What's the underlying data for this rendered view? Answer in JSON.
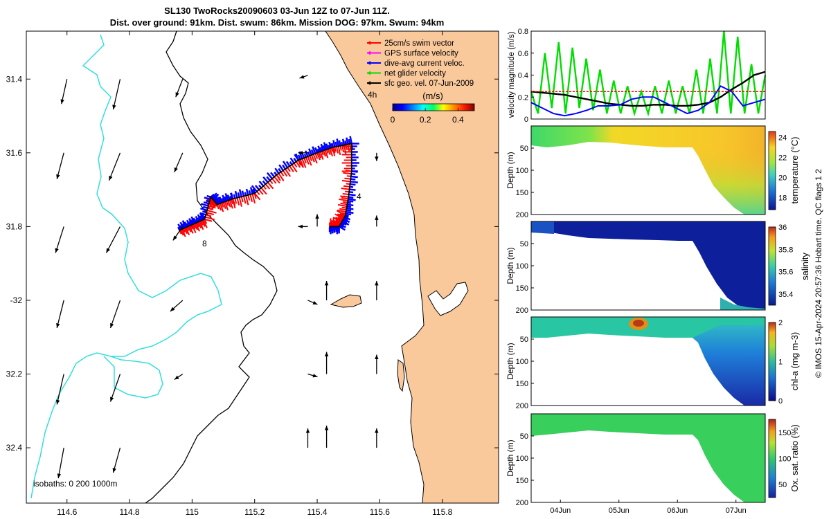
{
  "title": {
    "line1": "SL130 TwoRocks20090603 03-Jun 12Z to 07-Jun 11Z.",
    "line2": "Dist. over ground: 91km. Dist. swum: 86km. Mission DOG: 97km. Swum: 94km"
  },
  "colors": {
    "land": "#f9c89b",
    "swim_vector": "#ff0000",
    "gps_velocity": "#ff00ff",
    "current": "#0000ff",
    "net_velocity": "#00dd00",
    "geo_velocity": "#000000",
    "isobath_0": "#000000",
    "isobath_200": "#000000",
    "isobath_1000": "#33dddd"
  },
  "map": {
    "legend": [
      {
        "label": "25cm/s swim vector",
        "color": "#ff0000"
      },
      {
        "label": "GPS surface velocity",
        "color": "#ff00ff"
      },
      {
        "label": "dive-avg current veloc.",
        "color": "#0000ff"
      },
      {
        "label": "net glider velocity",
        "color": "#00dd00"
      },
      {
        "label": "sfc geo. vel. 07-Jun-2009",
        "color": "#000000"
      }
    ],
    "colorbar_unit": "(m/s)",
    "colorbar_ticks": [
      "0",
      "0.2",
      "0.4"
    ],
    "isobaths_label": "isobaths: 0   200  1000m",
    "time_marks": [
      "4h",
      "4",
      "8"
    ]
  },
  "chart_data": [
    {
      "type": "map",
      "x": [
        114.6,
        114.8,
        115,
        115.2,
        115.4,
        115.6,
        115.8
      ],
      "x_labels": [
        "114.6",
        "114.8",
        "115",
        "115.2",
        "115.4",
        "115.6",
        "115.8"
      ],
      "y": [
        -31.4,
        -31.6,
        -31.8,
        -32,
        -32.2,
        -32.4
      ],
      "y_labels": [
        "31.4",
        "31.6",
        "31.8",
        "-32",
        "32.2",
        "32.4"
      ],
      "xlim": [
        114.47,
        115.98
      ],
      "ylim": [
        -32.55,
        -31.27
      ],
      "track_lon": [
        114.96,
        115.0,
        115.04,
        115.06,
        115.08,
        115.13,
        115.2,
        115.27,
        115.34,
        115.4,
        115.45,
        115.51,
        115.51,
        115.5,
        115.49,
        115.47,
        115.44
      ],
      "track_lat": [
        -31.81,
        -31.795,
        -31.78,
        -31.72,
        -31.74,
        -31.725,
        -31.71,
        -31.66,
        -31.62,
        -31.6,
        -31.585,
        -31.575,
        -31.65,
        -31.72,
        -31.77,
        -31.8,
        -31.8
      ],
      "geo_arrows": [
        {
          "lon": 114.6,
          "lat": -31.4,
          "u": -0.04,
          "v": -0.18
        },
        {
          "lon": 114.77,
          "lat": -31.4,
          "u": -0.05,
          "v": -0.22
        },
        {
          "lon": 114.97,
          "lat": -31.4,
          "u": -0.05,
          "v": -0.13
        },
        {
          "lon": 115.37,
          "lat": -31.39,
          "u": -0.06,
          "v": -0.02
        },
        {
          "lon": 114.59,
          "lat": -31.6,
          "u": -0.05,
          "v": -0.19
        },
        {
          "lon": 114.77,
          "lat": -31.6,
          "u": -0.08,
          "v": -0.2
        },
        {
          "lon": 114.97,
          "lat": -31.6,
          "u": -0.06,
          "v": -0.14
        },
        {
          "lon": 115.37,
          "lat": -31.6,
          "u": -0.07,
          "v": 0.0
        },
        {
          "lon": 115.59,
          "lat": -31.6,
          "u": 0.0,
          "v": -0.06
        },
        {
          "lon": 114.59,
          "lat": -31.8,
          "u": -0.06,
          "v": -0.19
        },
        {
          "lon": 114.77,
          "lat": -31.8,
          "u": -0.1,
          "v": -0.19
        },
        {
          "lon": 114.97,
          "lat": -31.8,
          "u": -0.07,
          "v": -0.1
        },
        {
          "lon": 115.37,
          "lat": -31.8,
          "u": -0.07,
          "v": 0.0
        },
        {
          "lon": 115.4,
          "lat": -31.8,
          "u": 0.0,
          "v": 0.09
        },
        {
          "lon": 115.59,
          "lat": -31.8,
          "u": 0.0,
          "v": 0.08
        },
        {
          "lon": 114.59,
          "lat": -32.0,
          "u": -0.05,
          "v": -0.2
        },
        {
          "lon": 114.77,
          "lat": -32.0,
          "u": -0.07,
          "v": -0.2
        },
        {
          "lon": 114.97,
          "lat": -32.0,
          "u": -0.09,
          "v": -0.08
        },
        {
          "lon": 115.37,
          "lat": -32.0,
          "u": 0.07,
          "v": -0.03
        },
        {
          "lon": 115.43,
          "lat": -32.0,
          "u": 0.0,
          "v": 0.14
        },
        {
          "lon": 115.59,
          "lat": -32.0,
          "u": 0.0,
          "v": 0.14
        },
        {
          "lon": 114.59,
          "lat": -32.2,
          "u": -0.05,
          "v": -0.22
        },
        {
          "lon": 114.77,
          "lat": -32.2,
          "u": -0.07,
          "v": -0.2
        },
        {
          "lon": 114.97,
          "lat": -32.2,
          "u": -0.06,
          "v": -0.04
        },
        {
          "lon": 115.37,
          "lat": -32.2,
          "u": 0.07,
          "v": -0.02
        },
        {
          "lon": 115.43,
          "lat": -32.2,
          "u": 0.0,
          "v": 0.16
        },
        {
          "lon": 115.59,
          "lat": -32.2,
          "u": 0.0,
          "v": 0.14
        },
        {
          "lon": 114.59,
          "lat": -32.4,
          "u": -0.04,
          "v": -0.22
        },
        {
          "lon": 114.77,
          "lat": -32.4,
          "u": -0.05,
          "v": -0.18
        },
        {
          "lon": 115.37,
          "lat": -32.4,
          "u": 0.0,
          "v": 0.14
        },
        {
          "lon": 115.43,
          "lat": -32.4,
          "u": 0.0,
          "v": 0.16
        },
        {
          "lon": 115.59,
          "lat": -32.4,
          "u": 0.0,
          "v": 0.14
        }
      ]
    },
    {
      "type": "line",
      "ylabel": "velocity magnitude (m/s)",
      "xlim": [
        0,
        4
      ],
      "ylim": [
        0,
        0.8
      ],
      "y_ticks": [
        0,
        0.2,
        0.4,
        0.6,
        0.8
      ],
      "series": [
        {
          "color": "#00dd00",
          "values": [
            0.25,
            0.05,
            0.6,
            0.1,
            0.7,
            0.05,
            0.65,
            0.1,
            0.55,
            0.08,
            0.45,
            0.05,
            0.35,
            0.05,
            0.3,
            0.05,
            0.25,
            0.05,
            0.3,
            0.05,
            0.35,
            0.05,
            0.3,
            0.05,
            0.45,
            0.05,
            0.55,
            0.05,
            0.8,
            0.05,
            0.75,
            0.05,
            0.5,
            0.05,
            0.4
          ]
        },
        {
          "color": "#000000",
          "values": [
            0.25,
            0.24,
            0.23,
            0.22,
            0.2,
            0.18,
            0.16,
            0.14,
            0.13,
            0.12,
            0.12,
            0.13,
            0.13,
            0.12,
            0.12,
            0.13,
            0.15,
            0.2,
            0.27,
            0.33,
            0.4,
            0.43
          ]
        },
        {
          "color": "#0000ff",
          "values": [
            0.15,
            0.1,
            0.05,
            0.03,
            0.05,
            0.08,
            0.12,
            0.12,
            0.13,
            0.18,
            0.2,
            0.2,
            0.15,
            0.1,
            0.05,
            0.08,
            0.15,
            0.3,
            0.25,
            0.12,
            0.15,
            0.18
          ]
        },
        {
          "color": "#ff0000",
          "values": [
            0.25,
            0.25,
            0.25,
            0.25,
            0.25,
            0.25,
            0.25,
            0.25,
            0.25,
            0.25,
            0.25,
            0.25,
            0.25,
            0.25,
            0.25,
            0.25,
            0.25,
            0.25,
            0.25,
            0.25,
            0.25,
            0.25
          ]
        }
      ]
    },
    {
      "type": "heatmap",
      "ylabel": "Depth (m)",
      "colorbar_label": "temperature (°C)",
      "colorbar_ticks": [
        18,
        20,
        22,
        24
      ],
      "clim": [
        16.8,
        24.6
      ],
      "ylim": [
        0,
        200
      ],
      "y_ticks": [
        0,
        50,
        100,
        150,
        200
      ]
    },
    {
      "type": "heatmap",
      "ylabel": "Depth (m)",
      "colorbar_label": "salinity",
      "colorbar_ticks": [
        35.4,
        35.6,
        35.8,
        36
      ],
      "clim": [
        35.3,
        36.0
      ],
      "ylim": [
        0,
        200
      ],
      "y_ticks": [
        0,
        50,
        100,
        150,
        200
      ]
    },
    {
      "type": "heatmap",
      "ylabel": "Depth (m)",
      "colorbar_label": "chl-a (mg m-3)",
      "colorbar_ticks": [
        0,
        1,
        2
      ],
      "clim": [
        0,
        2
      ],
      "ylim": [
        0,
        200
      ],
      "y_ticks": [
        0,
        50,
        100,
        150,
        200
      ]
    },
    {
      "type": "heatmap",
      "ylabel": "Depth (m)",
      "colorbar_label": "Ox. sat. ratio (%)",
      "colorbar_ticks": [
        50,
        100,
        150
      ],
      "clim": [
        25,
        175
      ],
      "ylim": [
        0,
        200
      ],
      "y_ticks": [
        0,
        50,
        100,
        150,
        200
      ],
      "x_labels": [
        "04Jun",
        "05Jun",
        "06Jun",
        "07Jun"
      ],
      "x_ticks": [
        0.5,
        1.5,
        2.5,
        3.5
      ]
    }
  ],
  "credit": "© IMOS 15-Apr-2024 20:57:36 Hobart time. QC flags 1  2"
}
